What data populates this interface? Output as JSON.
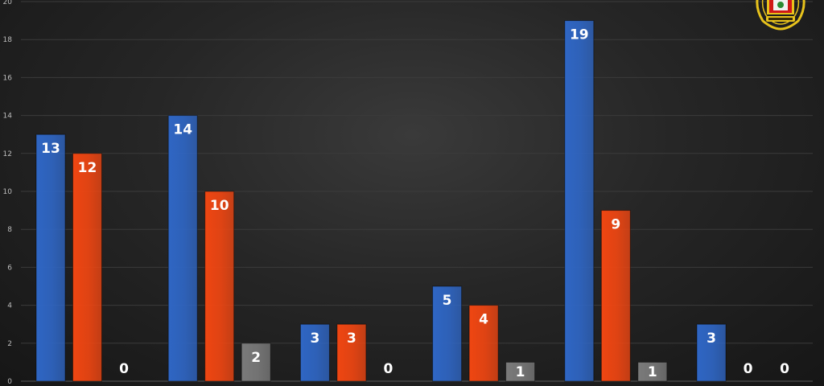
{
  "chart_data": {
    "type": "bar",
    "title": "",
    "xlabel": "",
    "ylabel": "",
    "ylim": [
      0,
      20
    ],
    "yticks": [
      0,
      2,
      4,
      6,
      8,
      10,
      12,
      14,
      16,
      18,
      20
    ],
    "grid": true,
    "legend": "none",
    "categories": [
      "",
      "",
      "",
      "",
      "",
      ""
    ],
    "series": [
      {
        "color": "#2f66c4",
        "values": [
          13,
          14,
          3,
          5,
          19,
          3
        ]
      },
      {
        "color": "#ef4612",
        "values": [
          12,
          10,
          3,
          4,
          9,
          0
        ]
      },
      {
        "color": "#7a7a7a",
        "values": [
          0,
          2,
          0,
          1,
          1,
          0
        ]
      }
    ]
  },
  "logo": {
    "icon": "crest-logo-icon",
    "colors": {
      "gold": "#e7c21c",
      "red": "#d01818",
      "green": "#2c8a32"
    }
  }
}
